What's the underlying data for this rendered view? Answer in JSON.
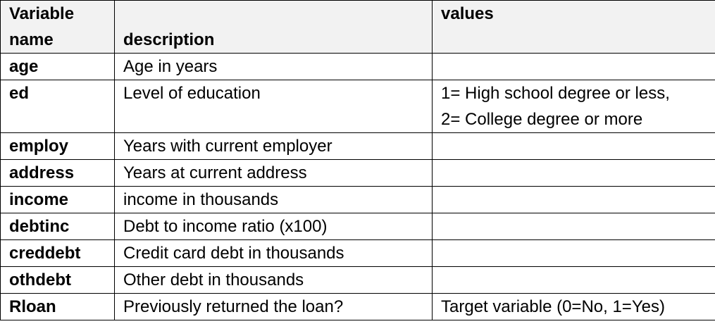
{
  "headers": {
    "col1_line1": "Variable",
    "col1_line2": "name",
    "col2": "description",
    "col3": "values"
  },
  "rows": [
    {
      "name": "age",
      "description": "Age in years",
      "values": ""
    },
    {
      "name": "ed",
      "description": "Level of education",
      "values_line1": "1= High school degree or less,",
      "values_line2": "2= College degree or more"
    },
    {
      "name": "employ",
      "description": "Years with current employer",
      "values": ""
    },
    {
      "name": "address",
      "description": "Years at current address",
      "values": ""
    },
    {
      "name": "income",
      "description": "income in thousands",
      "values": ""
    },
    {
      "name": "debtinc",
      "description": "Debt to income ratio (x100)",
      "values": ""
    },
    {
      "name": "creddebt",
      "description": "Credit card debt in thousands",
      "values": ""
    },
    {
      "name": "othdebt",
      "description": "Other debt in thousands",
      "values": ""
    },
    {
      "name": "Rloan",
      "description": "Previously returned the loan?",
      "values": "Target variable (0=No, 1=Yes)"
    }
  ]
}
